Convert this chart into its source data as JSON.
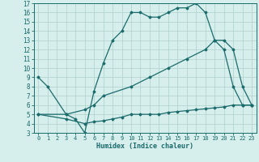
{
  "xlabel": "Humidex (Indice chaleur)",
  "xlim": [
    -0.5,
    23.5
  ],
  "ylim": [
    3,
    17
  ],
  "xticks": [
    0,
    1,
    2,
    3,
    4,
    5,
    6,
    7,
    8,
    9,
    10,
    11,
    12,
    13,
    14,
    15,
    16,
    17,
    18,
    19,
    20,
    21,
    22,
    23
  ],
  "yticks": [
    3,
    4,
    5,
    6,
    7,
    8,
    9,
    10,
    11,
    12,
    13,
    14,
    15,
    16,
    17
  ],
  "bg_color": "#d6eeec",
  "grid_color": "#afd0cc",
  "line_color": "#1a6b6b",
  "line1_x": [
    0,
    1,
    3,
    4,
    5,
    6,
    7,
    8,
    9,
    10,
    11,
    12,
    13,
    14,
    15,
    16,
    17,
    18,
    19,
    20,
    21,
    22,
    23
  ],
  "line1_y": [
    9,
    8,
    5,
    4.5,
    3,
    7.5,
    10.5,
    13,
    14,
    16,
    16,
    15.5,
    15.5,
    16,
    16.5,
    16.5,
    17,
    16,
    13,
    12,
    8,
    6,
    6
  ],
  "line2_x": [
    0,
    3,
    5,
    6,
    7,
    10,
    12,
    14,
    16,
    18,
    19,
    20,
    21,
    22,
    23
  ],
  "line2_y": [
    5,
    5,
    5.5,
    6,
    7,
    8,
    9,
    10,
    11,
    12,
    13,
    13,
    12,
    8,
    6
  ],
  "line3_x": [
    0,
    3,
    5,
    6,
    7,
    8,
    9,
    10,
    11,
    12,
    13,
    14,
    15,
    16,
    17,
    18,
    19,
    20,
    21,
    22,
    23
  ],
  "line3_y": [
    5,
    4.5,
    4,
    4.2,
    4.3,
    4.5,
    4.7,
    5,
    5,
    5,
    5,
    5.2,
    5.3,
    5.4,
    5.5,
    5.6,
    5.7,
    5.8,
    6,
    6,
    6
  ],
  "xlabel_fontsize": 6,
  "tick_fontsize": 5,
  "linewidth": 0.9,
  "markersize": 1.5
}
